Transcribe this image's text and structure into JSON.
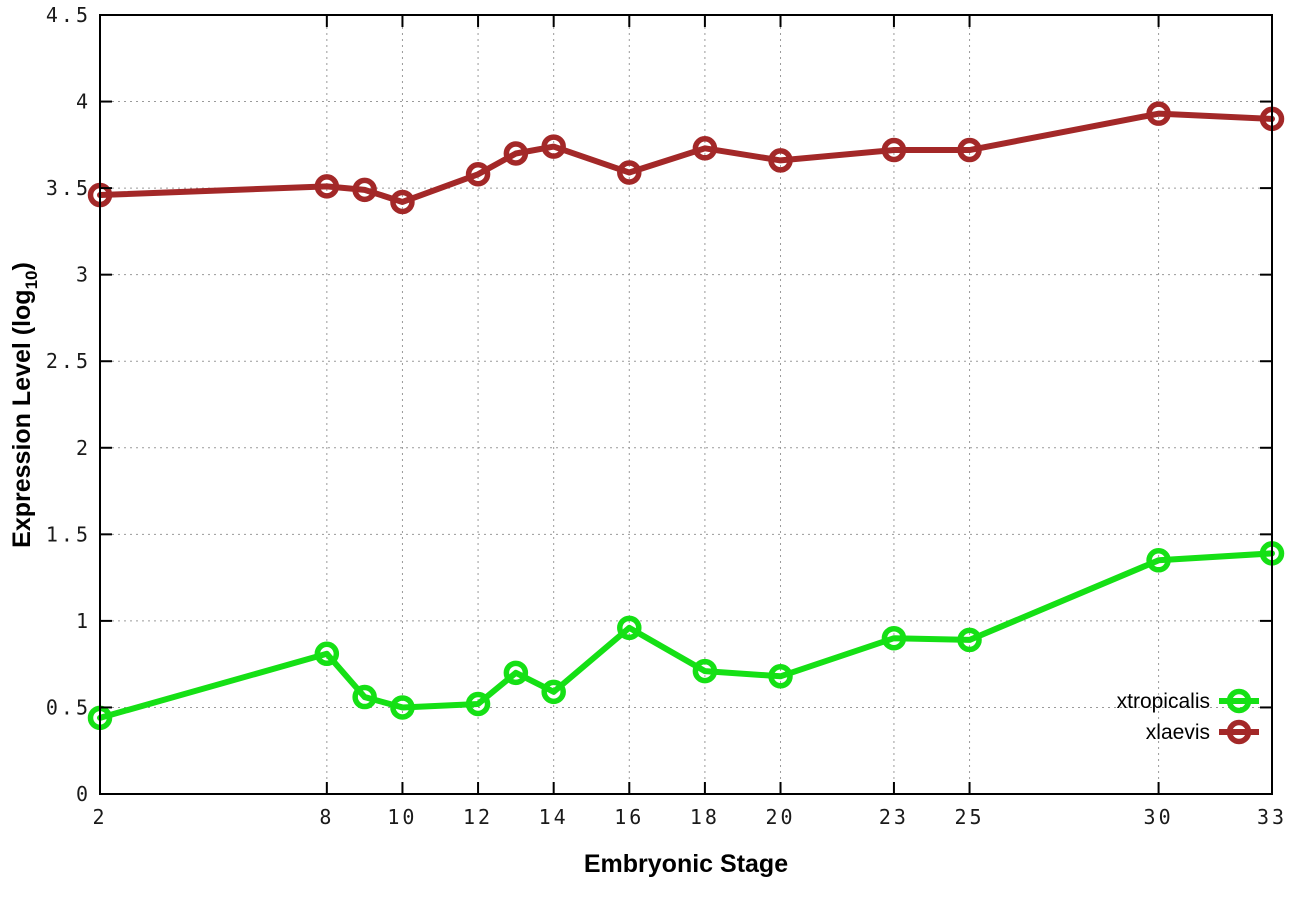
{
  "chart_data": {
    "type": "line",
    "title": "",
    "xlabel": "Embryonic Stage",
    "ylabel": "Expression Level (log10)",
    "ylabel_parts": {
      "main": "Expression Level (log",
      "sub": "10",
      "close": ")"
    },
    "xlim": [
      2,
      33
    ],
    "ylim": [
      0,
      4.5
    ],
    "grid": true,
    "grid_style": "dotted",
    "legend_position": "bottom-right-inside",
    "background_color": "#ffffff",
    "border_color": "#000000",
    "x": [
      2,
      8,
      9,
      10,
      12,
      13,
      14,
      16,
      18,
      20,
      23,
      25,
      30,
      33
    ],
    "x_tick_values": [
      2,
      8,
      10,
      12,
      14,
      16,
      18,
      20,
      23,
      25,
      30,
      33
    ],
    "x_tick_labels": [
      "2",
      "8",
      "10",
      "12",
      "14",
      "16",
      "18",
      "20",
      "23",
      "25",
      "30",
      "33"
    ],
    "y_tick_values": [
      0,
      0.5,
      1,
      1.5,
      2,
      2.5,
      3,
      3.5,
      4,
      4.5
    ],
    "y_tick_labels": [
      "0",
      "0.5",
      "1",
      "1.5",
      "2",
      "2.5",
      "3",
      "3.5",
      "4",
      "4.5"
    ],
    "marker": "open-circle",
    "series": [
      {
        "name": "xtropicalis",
        "color": "#15e015",
        "values": [
          0.44,
          0.81,
          0.56,
          0.5,
          0.52,
          0.7,
          0.59,
          0.96,
          0.71,
          0.68,
          0.9,
          0.89,
          1.35,
          1.39
        ]
      },
      {
        "name": "xlaevis",
        "color": "#a32828",
        "values": [
          3.46,
          3.51,
          3.49,
          3.42,
          3.58,
          3.7,
          3.74,
          3.59,
          3.73,
          3.66,
          3.72,
          3.72,
          3.93,
          3.9
        ]
      }
    ]
  }
}
